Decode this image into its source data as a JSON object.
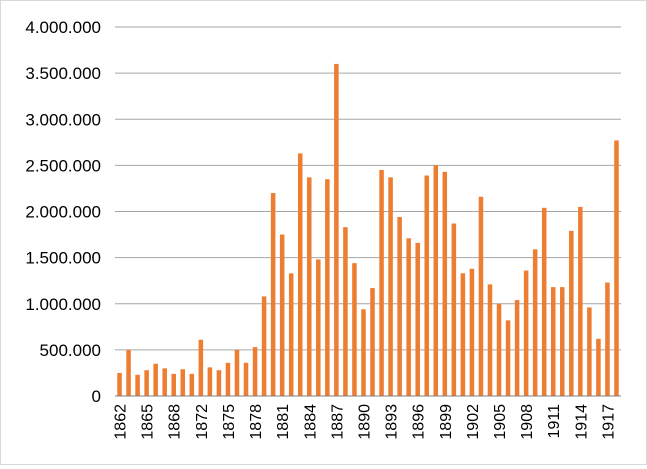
{
  "chart_data": {
    "type": "bar",
    "title": "",
    "xlabel": "",
    "ylabel": "",
    "ylim": [
      0,
      4000000
    ],
    "grid": true,
    "legend": "none",
    "bar_color": "#ED7D31",
    "y_ticks": [
      {
        "value": 0,
        "label": "0"
      },
      {
        "value": 500000,
        "label": "500.000"
      },
      {
        "value": 1000000,
        "label": "1.000.000"
      },
      {
        "value": 1500000,
        "label": "1.500.000"
      },
      {
        "value": 2000000,
        "label": "2.000.000"
      },
      {
        "value": 2500000,
        "label": "2.500.000"
      },
      {
        "value": 3000000,
        "label": "3.000.000"
      },
      {
        "value": 3500000,
        "label": "3.500.000"
      },
      {
        "value": 4000000,
        "label": "4.000.000"
      }
    ],
    "x_tick_labels": [
      "1862",
      "1865",
      "1868",
      "1872",
      "1875",
      "1878",
      "1881",
      "1884",
      "1887",
      "1890",
      "1893",
      "1896",
      "1899",
      "1902",
      "1905",
      "1908",
      "1911",
      "1914",
      "1917"
    ],
    "categories": [
      "1862",
      "1863",
      "1864",
      "1865",
      "1866",
      "1867",
      "1868",
      "1869",
      "1870",
      "1872",
      "1873",
      "1874",
      "1875",
      "1876",
      "1877",
      "1878",
      "1879",
      "1880",
      "1881",
      "1882",
      "1883",
      "1884",
      "1885",
      "1886",
      "1887",
      "1888",
      "1889",
      "1890",
      "1891",
      "1892",
      "1893",
      "1894",
      "1895",
      "1896",
      "1897",
      "1898",
      "1899",
      "1900",
      "1901",
      "1902",
      "1903",
      "1904",
      "1905",
      "1906",
      "1907",
      "1908",
      "1909",
      "1910",
      "1911",
      "1912",
      "1913",
      "1914",
      "1915",
      "1916",
      "1917",
      "1918"
    ],
    "values": [
      250000,
      500000,
      230000,
      280000,
      350000,
      300000,
      240000,
      290000,
      240000,
      610000,
      310000,
      280000,
      360000,
      500000,
      360000,
      530000,
      1080000,
      2200000,
      1750000,
      1330000,
      2630000,
      2370000,
      1480000,
      2350000,
      3600000,
      1830000,
      1440000,
      940000,
      1170000,
      2450000,
      2370000,
      1940000,
      1710000,
      1660000,
      2390000,
      2500000,
      2430000,
      1870000,
      1330000,
      1380000,
      2160000,
      1210000,
      1000000,
      820000,
      1040000,
      1360000,
      1590000,
      2040000,
      1180000,
      1180000,
      1790000,
      2050000,
      960000,
      620000,
      1230000,
      2770000
    ]
  }
}
